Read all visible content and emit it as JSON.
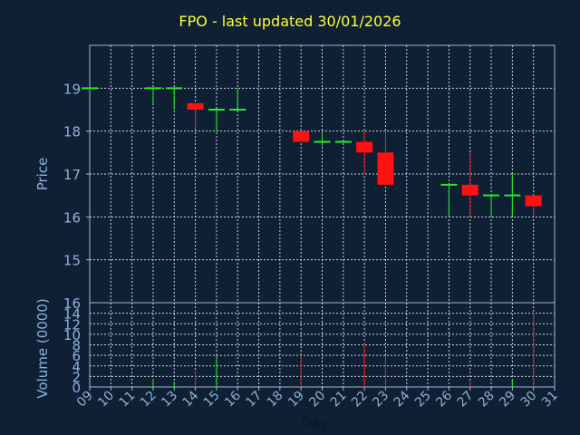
{
  "title": "FPO - last updated 30/01/2026",
  "colors": {
    "background": "#0f2035",
    "frame": "#9fb7d2",
    "grid": "#c8d4e3",
    "label": "#8fb0d8",
    "title": "#ffff33",
    "up": "#22ee22",
    "down": "#ff1111"
  },
  "chart_data": [
    {
      "type": "candlestick",
      "ylabel": "Price",
      "ylim": [
        14,
        20
      ],
      "yticks": [
        "15",
        "16",
        "17",
        "18",
        "19"
      ],
      "x_tick_labels": [
        "09",
        "10",
        "11",
        "12",
        "13",
        "14",
        "15",
        "16",
        "17",
        "18",
        "19",
        "20",
        "21",
        "22",
        "23",
        "24",
        "25",
        "26",
        "27",
        "28",
        "29",
        "30",
        "31"
      ],
      "candles": [
        {
          "day": "09",
          "open": 19.0,
          "high": 19.0,
          "low": 19.0,
          "close": 19.0
        },
        {
          "day": "12",
          "open": 19.0,
          "high": 19.0,
          "low": 18.65,
          "close": 19.0
        },
        {
          "day": "13",
          "open": 19.0,
          "high": 19.0,
          "low": 18.5,
          "close": 19.0
        },
        {
          "day": "14",
          "open": 18.65,
          "high": 18.65,
          "low": 18.05,
          "close": 18.5
        },
        {
          "day": "15",
          "open": 18.5,
          "high": 18.5,
          "low": 18.0,
          "close": 18.5
        },
        {
          "day": "16",
          "open": 18.5,
          "high": 19.0,
          "low": 18.5,
          "close": 18.5
        },
        {
          "day": "19",
          "open": 18.0,
          "high": 18.0,
          "low": 17.75,
          "close": 17.75
        },
        {
          "day": "20",
          "open": 17.75,
          "high": 17.95,
          "low": 17.65,
          "close": 17.75
        },
        {
          "day": "21",
          "open": 17.75,
          "high": 17.75,
          "low": 17.75,
          "close": 17.75
        },
        {
          "day": "22",
          "open": 17.75,
          "high": 18.0,
          "low": 17.0,
          "close": 17.5
        },
        {
          "day": "23",
          "open": 17.5,
          "high": 18.0,
          "low": 16.75,
          "close": 16.75
        },
        {
          "day": "26",
          "open": 16.75,
          "high": 16.75,
          "low": 16.0,
          "close": 16.75
        },
        {
          "day": "27",
          "open": 16.75,
          "high": 17.5,
          "low": 16.0,
          "close": 16.5
        },
        {
          "day": "28",
          "open": 16.5,
          "high": 16.5,
          "low": 16.0,
          "close": 16.5
        },
        {
          "day": "29",
          "open": 16.5,
          "high": 17.0,
          "low": 16.0,
          "close": 16.5
        },
        {
          "day": "30",
          "open": 16.5,
          "high": 16.5,
          "low": 16.0,
          "close": 16.25
        }
      ],
      "grid": true
    },
    {
      "type": "bar",
      "ylabel": "Volume (0000)",
      "xlabel": "Day",
      "ylim": [
        0,
        16
      ],
      "yticks": [
        "0",
        "2",
        "4",
        "6",
        "8",
        "10",
        "12",
        "14",
        "16"
      ],
      "values": [
        {
          "day": "12",
          "value": 1.5,
          "color": "up"
        },
        {
          "day": "13",
          "value": 1.0,
          "color": "up"
        },
        {
          "day": "14",
          "value": 3.0,
          "color": "down"
        },
        {
          "day": "15",
          "value": 6.0,
          "color": "up"
        },
        {
          "day": "19",
          "value": 6.0,
          "color": "down"
        },
        {
          "day": "22",
          "value": 8.5,
          "color": "down"
        },
        {
          "day": "23",
          "value": 6.0,
          "color": "down"
        },
        {
          "day": "27",
          "value": 1.0,
          "color": "down"
        },
        {
          "day": "29",
          "value": 1.5,
          "color": "up"
        },
        {
          "day": "30",
          "value": 14.0,
          "color": "down"
        }
      ],
      "grid": true
    }
  ]
}
